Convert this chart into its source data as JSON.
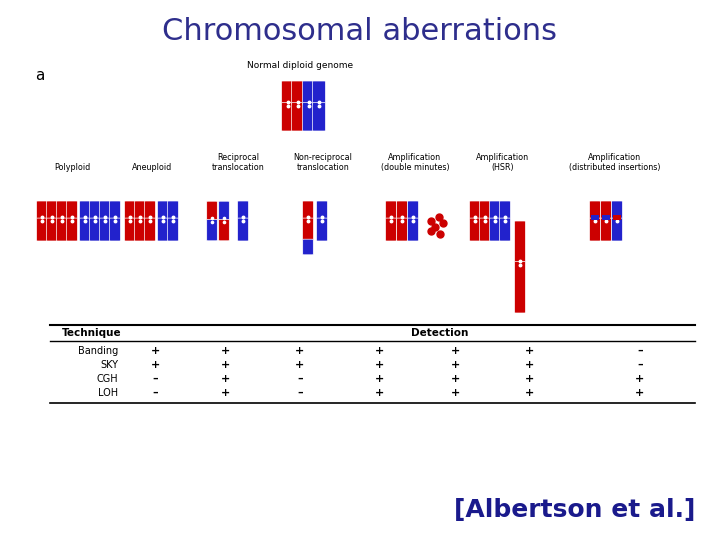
{
  "title": "Chromosomal aberrations",
  "title_color": "#2e2e8c",
  "title_fontsize": 22,
  "subtitle_a": "a",
  "normal_label": "Normal diploid genome",
  "citation": "[Albertson et al.]",
  "citation_color": "#1a1a8c",
  "citation_fontsize": 18,
  "background_color": "#ffffff",
  "aberration_labels": [
    "Polyploid",
    "Aneuploid",
    "Reciprocal\ntranslocation",
    "Non-reciprocal\ntranslocation",
    "Amplification\n(double minutes)",
    "Amplification\n(HSR)",
    "Amplification\n(distributed insertions)"
  ],
  "technique_header": "Technique",
  "detection_header": "Detection",
  "techniques": [
    "Banding",
    "SKY",
    "CGH",
    "LOH"
  ],
  "detection_matrix": [
    [
      "+",
      "+",
      "+",
      "+",
      "+",
      "+",
      "–"
    ],
    [
      "+",
      "+",
      "+",
      "+",
      "+",
      "+",
      "–"
    ],
    [
      "–",
      "+",
      "–",
      "+",
      "+",
      "+",
      "+"
    ],
    [
      "–",
      "+",
      "–",
      "+",
      "+",
      "+",
      "+"
    ]
  ],
  "red_color": "#cc0000",
  "blue_color": "#2222cc"
}
